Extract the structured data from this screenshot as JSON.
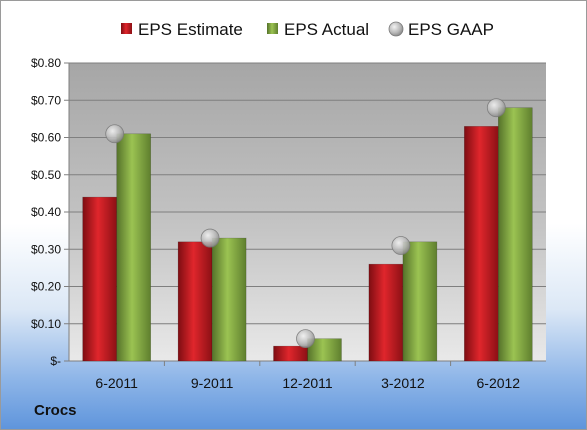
{
  "company": "Crocs",
  "legend": [
    {
      "label": "EPS Estimate",
      "marker": "square",
      "color": "#c0151b"
    },
    {
      "label": "EPS Actual",
      "marker": "square",
      "color": "#7ea43a"
    },
    {
      "label": "EPS GAAP",
      "marker": "circle",
      "color": "#a8a8a8"
    }
  ],
  "chart_data": {
    "type": "bar",
    "categories": [
      "6-2011",
      "9-2011",
      "12-2011",
      "3-2012",
      "6-2012"
    ],
    "series": [
      {
        "name": "EPS Estimate",
        "type": "bar",
        "values": [
          0.44,
          0.32,
          0.04,
          0.26,
          0.63
        ],
        "color": "#c0151b"
      },
      {
        "name": "EPS Actual",
        "type": "bar",
        "values": [
          0.61,
          0.33,
          0.06,
          0.32,
          0.68
        ],
        "color": "#7ea43a"
      },
      {
        "name": "EPS GAAP",
        "type": "scatter",
        "values": [
          0.61,
          0.33,
          0.06,
          0.31,
          0.68
        ],
        "color": "#a8a8a8"
      }
    ],
    "yticks": [
      0,
      0.1,
      0.2,
      0.3,
      0.4,
      0.5,
      0.6,
      0.7,
      0.8
    ],
    "ytick_labels": [
      "$-",
      "$0.10",
      "$0.20",
      "$0.30",
      "$0.40",
      "$0.50",
      "$0.60",
      "$0.70",
      "$0.80"
    ],
    "ylim": [
      0,
      0.8
    ],
    "grid": true,
    "legend_position": "top",
    "title": "",
    "xlabel": "",
    "ylabel": ""
  }
}
